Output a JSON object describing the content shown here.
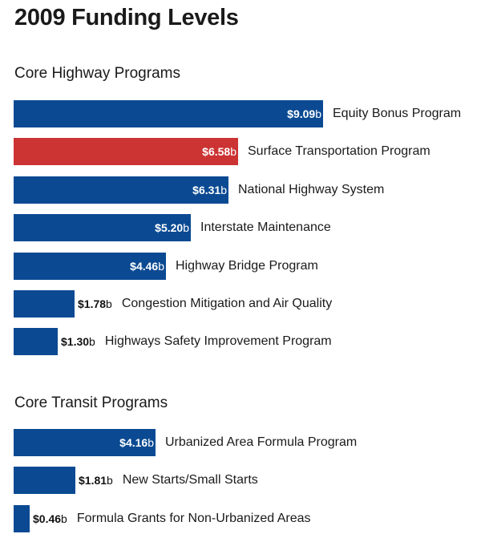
{
  "chart_data": {
    "type": "bar",
    "orientation": "horizontal",
    "title": "2009 Funding Levels",
    "value_unit": "b",
    "value_prefix": "$",
    "colors": {
      "default": "#0b4a92",
      "highlight": "#cc3333"
    },
    "groups": [
      {
        "name": "Core Highway Programs",
        "categories": [
          "Equity Bonus Program",
          "Surface Transportation Program",
          "National Highway System",
          "Interstate Maintenance",
          "Highway Bridge Program",
          "Congestion Mitigation and Air Quality",
          "Highways Safety Improvement Program"
        ],
        "values": [
          9.09,
          6.58,
          6.31,
          5.2,
          4.46,
          1.78,
          1.3
        ],
        "highlight": [
          false,
          true,
          false,
          false,
          false,
          false,
          false
        ]
      },
      {
        "name": "Core Transit Programs",
        "categories": [
          "Urbanized Area Formula Program",
          "New Starts/Small Starts",
          "Formula Grants for Non-Urbanized Areas"
        ],
        "values": [
          4.16,
          1.81,
          0.46
        ],
        "highlight": [
          false,
          false,
          false
        ]
      }
    ]
  }
}
